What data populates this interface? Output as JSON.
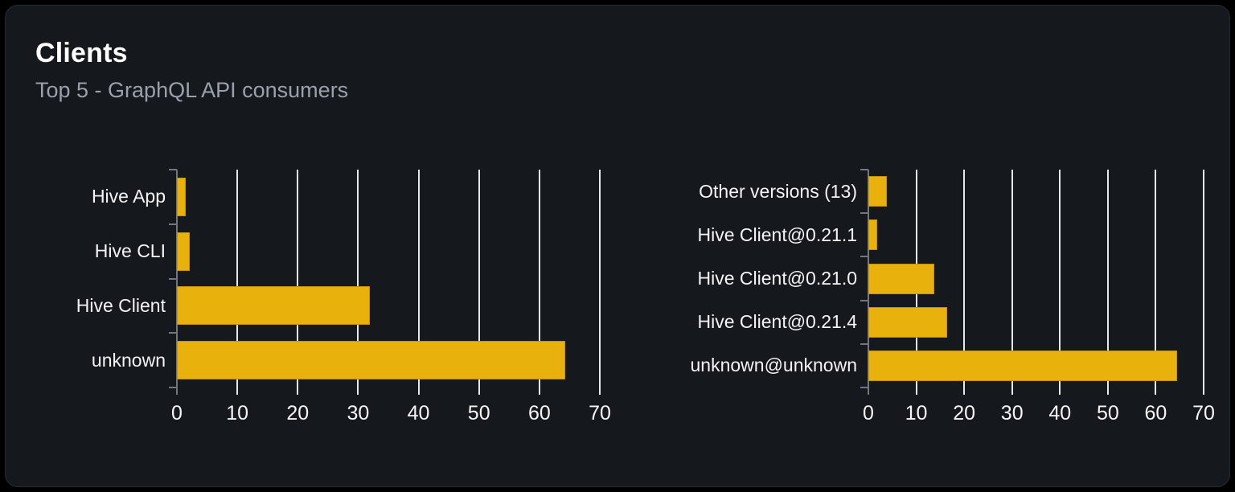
{
  "header": {
    "title": "Clients",
    "subtitle": "Top 5 - GraphQL API consumers"
  },
  "colors": {
    "bar_fill": "#e9b10c",
    "bar_border": "#c2920a",
    "gridline": "#e5e8f0",
    "axis": "#72767e",
    "card_background": "#15181d",
    "page_background": "#000000",
    "title_text": "#ffffff",
    "subtitle_text": "#9ba1aa",
    "label_text": "#f3f4f6"
  },
  "chart_data": [
    {
      "type": "bar",
      "orientation": "horizontal",
      "title": "",
      "categories": [
        "Hive App",
        "Hive CLI",
        "Hive Client",
        "unknown"
      ],
      "values": [
        1.5,
        2.1,
        32,
        64.3
      ],
      "xlabel": "",
      "ylabel": "",
      "xlim": [
        0,
        70
      ],
      "xticks": [
        0,
        10,
        20,
        30,
        40,
        50,
        60,
        70
      ],
      "grid": true,
      "legend": false
    },
    {
      "type": "bar",
      "orientation": "horizontal",
      "title": "",
      "categories": [
        "Other versions (13)",
        "Hive Client@0.21.1",
        "Hive Client@0.21.0",
        "Hive Client@0.21.4",
        "unknown@unknown"
      ],
      "values": [
        3.9,
        1.8,
        13.7,
        16.4,
        64.4
      ],
      "xlabel": "",
      "ylabel": "",
      "xlim": [
        0,
        70
      ],
      "xticks": [
        0,
        10,
        20,
        30,
        40,
        50,
        60,
        70
      ],
      "grid": true,
      "legend": false
    }
  ]
}
